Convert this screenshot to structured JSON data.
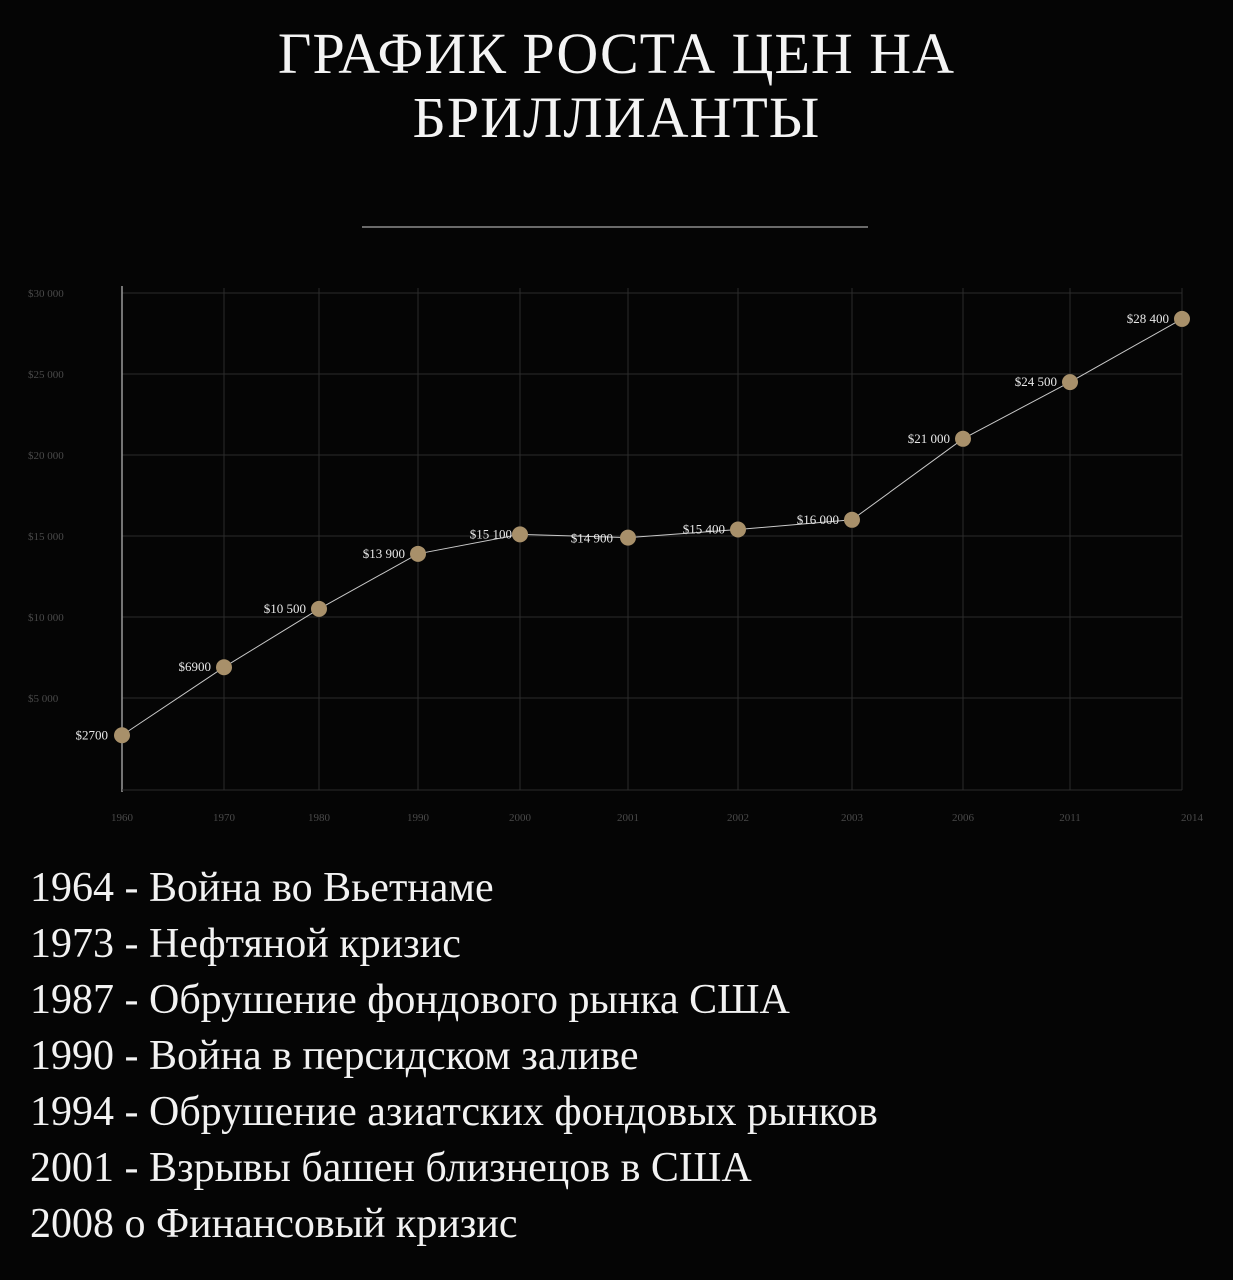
{
  "title": {
    "line1": "ГРАФИК РОСТА ЦЕН НА",
    "line2": "БРИЛЛИАНТЫ"
  },
  "colors": {
    "background": "#050505",
    "point": "#a8906a",
    "line": "#c9c9c9",
    "grid": "#2b2b2b",
    "axis_text": "#4a4a4a",
    "label_text": "#e8e8e8"
  },
  "chart_data": {
    "type": "line",
    "categories": [
      "1960",
      "1970",
      "1980",
      "1990",
      "2000",
      "2001",
      "2002",
      "2003",
      "2006",
      "2011",
      "2014"
    ],
    "values": [
      2700,
      6900,
      10500,
      13900,
      15100,
      14900,
      15400,
      16000,
      21000,
      24500,
      28400
    ],
    "data_labels": [
      "$2700",
      "$6900",
      "$10 500",
      "$13 900",
      "$15 100",
      "$14 900",
      "$15 400",
      "$16 000",
      "$21 000",
      "$24 500",
      "$28 400"
    ],
    "yticks": [
      0,
      5000,
      10000,
      15000,
      20000,
      25000,
      30000
    ],
    "ytick_labels": [
      "",
      "$5 000",
      "$10 000",
      "$15 000",
      "$20 000",
      "$25 000",
      "$30 000"
    ],
    "ylim": [
      0,
      30000
    ],
    "grid": true,
    "title": "ГРАФИК РОСТА ЦЕН НА БРИЛЛИАНТЫ",
    "xlabel": "",
    "ylabel": ""
  },
  "events": [
    "1964 - Война во Вьетнаме",
    "1973 - Нефтяной кризис",
    "1987 - Обрушение фондового рынка США",
    "1990 - Война в персидском заливе",
    "1994 - Обрушение азиатских фондовых рынков",
    "2001 - Взрывы башен близнецов в США",
    "2008 о Финансовый кризис"
  ]
}
